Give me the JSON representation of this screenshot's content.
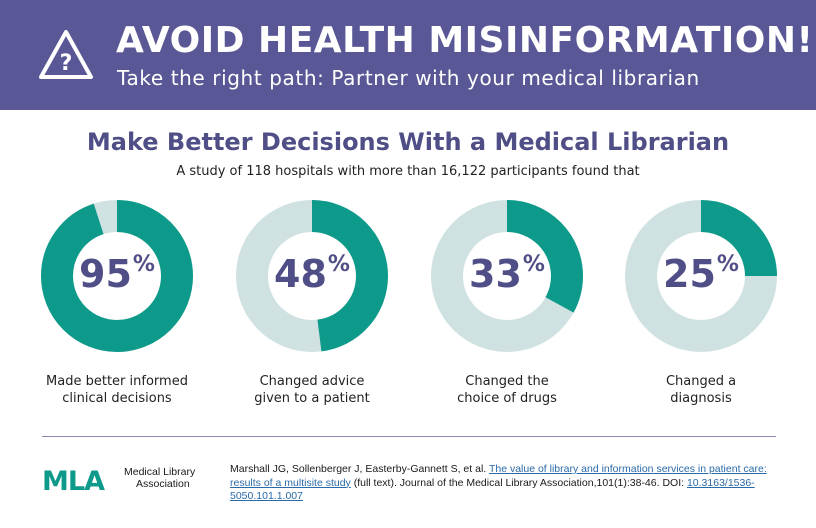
{
  "banner": {
    "title": "AVOID HEALTH MISINFORMATION!",
    "subtitle": "Take the right path: Partner with your medical librarian",
    "icon": "warning-triangle-question-icon",
    "background": "#595795"
  },
  "heading": "Make Better Decisions With a Medical Librarian",
  "intro": "A study of 118 hospitals with more than 16,122 participants found that",
  "colors": {
    "filled": "#0e9a8b",
    "track": "#cfe2e1",
    "accent_text": "#4f4e86"
  },
  "stats": [
    {
      "value": "95",
      "sign": "%",
      "label_line1": "Made better informed",
      "label_line2": "clinical decisions"
    },
    {
      "value": "48",
      "sign": "%",
      "label_line1": "Changed advice",
      "label_line2": "given to a patient"
    },
    {
      "value": "33",
      "sign": "%",
      "label_line1": "Changed the",
      "label_line2": "choice of drugs"
    },
    {
      "value": "25",
      "sign": "%",
      "label_line1": "Changed a",
      "label_line2": "diagnosis"
    }
  ],
  "chart_data": {
    "type": "pie",
    "variant": "donut",
    "categories": [
      "Made better informed clinical decisions",
      "Changed advice given to a patient",
      "Changed the choice of drugs",
      "Changed a diagnosis"
    ],
    "values": [
      95,
      48,
      33,
      25
    ],
    "unit": "%"
  },
  "logo": {
    "mark": "MLA",
    "line1": "Medical Library",
    "line2": "Association"
  },
  "citation": {
    "authors": "Marshall JG, Sollenberger J, Easterby-Gannett S, et al. ",
    "link_text": "The value of library and information services in patient care: results of a multisite study",
    "mid": " (full text). Journal of the Medical Library Association,101(1):38-46. DOI: ",
    "doi": "10.3163/1536-5050.101.1.007"
  }
}
